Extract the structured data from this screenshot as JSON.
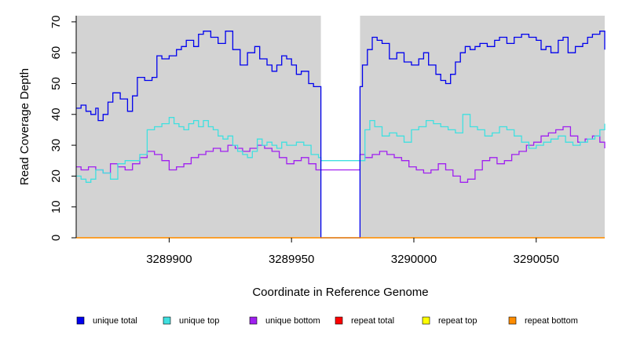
{
  "chart_data": {
    "type": "line",
    "title": "",
    "xlabel": "Coordinate in Reference Genome",
    "ylabel": "Read Coverage Depth",
    "xlim": [
      3289862,
      3290078
    ],
    "ylim": [
      0,
      72
    ],
    "x_ticks": [
      3289900,
      3289950,
      3290000,
      3290050
    ],
    "x_tick_labels": [
      "3289900",
      "3289950",
      "3290000",
      "3290050"
    ],
    "y_ticks": [
      0,
      10,
      20,
      30,
      40,
      50,
      60,
      70
    ],
    "y_tick_labels": [
      "0",
      "10",
      "20",
      "30",
      "40",
      "50",
      "60",
      "70"
    ],
    "plot_background": "#d3d3d3",
    "grid": false,
    "legend_position": "bottom",
    "gap": {
      "x_start": 3289962,
      "x_end": 3289978
    },
    "series": [
      {
        "name": "unique total",
        "color": "#0000ee",
        "step": true,
        "x": [
          3289862,
          3289864,
          3289866,
          3289868,
          3289870,
          3289871,
          3289873,
          3289875,
          3289877,
          3289880,
          3289883,
          3289885,
          3289887,
          3289890,
          3289893,
          3289895,
          3289897,
          3289900,
          3289903,
          3289905,
          3289907,
          3289910,
          3289912,
          3289914,
          3289917,
          3289920,
          3289923,
          3289926,
          3289929,
          3289932,
          3289935,
          3289937,
          3289940,
          3289942,
          3289944,
          3289946,
          3289948,
          3289950,
          3289952,
          3289954,
          3289957,
          3289959,
          3289960,
          3289961,
          3289962,
          3289978,
          3289979,
          3289981,
          3289983,
          3289985,
          3289987,
          3289990,
          3289993,
          3289996,
          3289999,
          3290002,
          3290004,
          3290006,
          3290009,
          3290011,
          3290013,
          3290015,
          3290017,
          3290019,
          3290021,
          3290023,
          3290025,
          3290027,
          3290030,
          3290033,
          3290035,
          3290038,
          3290041,
          3290044,
          3290047,
          3290050,
          3290052,
          3290054,
          3290056,
          3290059,
          3290061,
          3290063,
          3290066,
          3290069,
          3290071,
          3290073,
          3290076,
          3290078
        ],
        "y": [
          42,
          43,
          41,
          40,
          42,
          38,
          40,
          44,
          47,
          45,
          41,
          46,
          52,
          51,
          52,
          59,
          58,
          59,
          61,
          62,
          64,
          62,
          66,
          67,
          65,
          63,
          67,
          61,
          56,
          60,
          62,
          58,
          56,
          54,
          56,
          59,
          58,
          56,
          53,
          54,
          50,
          49,
          49,
          49,
          0,
          49,
          56,
          61,
          65,
          64,
          63,
          58,
          60,
          57,
          56,
          58,
          60,
          56,
          53,
          51,
          50,
          53,
          57,
          60,
          62,
          61,
          62,
          63,
          62,
          64,
          65,
          63,
          65,
          66,
          65,
          64,
          61,
          62,
          60,
          64,
          65,
          60,
          62,
          63,
          65,
          66,
          67,
          61
        ]
      },
      {
        "name": "unique top",
        "color": "#40e0e0",
        "step": true,
        "x": [
          3289862,
          3289864,
          3289866,
          3289868,
          3289870,
          3289873,
          3289876,
          3289879,
          3289882,
          3289885,
          3289888,
          3289891,
          3289894,
          3289897,
          3289900,
          3289902,
          3289904,
          3289906,
          3289908,
          3289910,
          3289912,
          3289914,
          3289916,
          3289918,
          3289920,
          3289922,
          3289924,
          3289926,
          3289928,
          3289930,
          3289932,
          3289934,
          3289936,
          3289938,
          3289940,
          3289942,
          3289944,
          3289946,
          3289948,
          3289950,
          3289952,
          3289955,
          3289958,
          3289961,
          3289962,
          3289978,
          3289980,
          3289982,
          3289984,
          3289987,
          3289990,
          3289993,
          3289996,
          3289999,
          3290002,
          3290005,
          3290008,
          3290011,
          3290014,
          3290017,
          3290020,
          3290023,
          3290026,
          3290029,
          3290032,
          3290035,
          3290038,
          3290041,
          3290044,
          3290047,
          3290050,
          3290053,
          3290056,
          3290059,
          3290062,
          3290065,
          3290068,
          3290071,
          3290074,
          3290076,
          3290078
        ],
        "y": [
          20,
          19,
          18,
          19,
          22,
          21,
          19,
          24,
          25,
          25,
          27,
          35,
          36,
          37,
          39,
          37,
          36,
          35,
          37,
          38,
          36,
          38,
          36,
          35,
          33,
          32,
          33,
          30,
          28,
          27,
          26,
          28,
          32,
          30,
          31,
          30,
          29,
          31,
          30,
          30,
          31,
          30,
          27,
          26,
          25,
          25,
          35,
          38,
          36,
          33,
          34,
          33,
          31,
          35,
          36,
          38,
          37,
          36,
          35,
          34,
          40,
          36,
          35,
          33,
          34,
          36,
          35,
          33,
          31,
          29,
          30,
          31,
          32,
          33,
          31,
          30,
          31,
          32,
          33,
          35,
          37
        ]
      },
      {
        "name": "unique bottom",
        "color": "#a020f0",
        "step": true,
        "x": [
          3289862,
          3289864,
          3289867,
          3289870,
          3289873,
          3289876,
          3289879,
          3289882,
          3289885,
          3289888,
          3289891,
          3289894,
          3289897,
          3289900,
          3289903,
          3289906,
          3289909,
          3289912,
          3289915,
          3289918,
          3289921,
          3289924,
          3289927,
          3289930,
          3289933,
          3289936,
          3289939,
          3289942,
          3289945,
          3289948,
          3289951,
          3289954,
          3289957,
          3289960,
          3289962,
          3289978,
          3289980,
          3289983,
          3289986,
          3289989,
          3289992,
          3289995,
          3289998,
          3290001,
          3290004,
          3290007,
          3290010,
          3290013,
          3290016,
          3290019,
          3290022,
          3290025,
          3290028,
          3290031,
          3290034,
          3290037,
          3290040,
          3290043,
          3290046,
          3290049,
          3290052,
          3290055,
          3290058,
          3290061,
          3290064,
          3290067,
          3290070,
          3290073,
          3290076,
          3290078
        ],
        "y": [
          23,
          22,
          23,
          22,
          21,
          24,
          23,
          22,
          24,
          26,
          28,
          27,
          25,
          22,
          23,
          24,
          26,
          27,
          28,
          29,
          28,
          30,
          29,
          28,
          29,
          30,
          29,
          28,
          26,
          24,
          25,
          26,
          24,
          22,
          22,
          27,
          26,
          27,
          28,
          27,
          26,
          25,
          23,
          22,
          21,
          22,
          24,
          22,
          20,
          18,
          19,
          22,
          25,
          26,
          24,
          25,
          27,
          28,
          30,
          31,
          33,
          34,
          35,
          36,
          33,
          31,
          32,
          33,
          31,
          29
        ]
      },
      {
        "name": "repeat total",
        "color": "#ff0000",
        "step": true,
        "x": [
          3289862,
          3290078
        ],
        "y": [
          0,
          0
        ]
      },
      {
        "name": "repeat top",
        "color": "#ffff00",
        "step": true,
        "x": [
          3289862,
          3290078
        ],
        "y": [
          0,
          0
        ]
      },
      {
        "name": "repeat bottom",
        "color": "#ff8c00",
        "step": true,
        "x": [
          3289862,
          3290078
        ],
        "y": [
          0,
          0
        ]
      }
    ]
  }
}
